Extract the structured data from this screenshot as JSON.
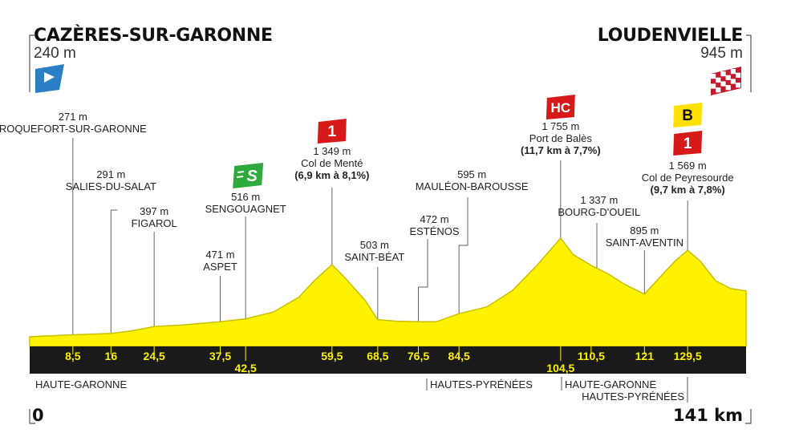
{
  "start": {
    "city": "CAZÈRES-SUR-GARONNE",
    "altitude": "240 m"
  },
  "finish": {
    "city": "LOUDENVIELLE",
    "altitude": "945 m"
  },
  "distance": {
    "start_label": "0",
    "end_label": "141 km",
    "total_km": 141
  },
  "colors": {
    "profile": "#fff200",
    "profile_stroke": "#c9bf00",
    "band": "#1a1a1a",
    "km_text": "#fff200",
    "cat1": "#d61a1a",
    "hc": "#d61a1a",
    "bonus": "#ffe000",
    "sprint": "#2eaa3c",
    "start_flag": "#2a7fc4"
  },
  "icons": {
    "start": "start-flag-icon",
    "finish": "checkered-flag-icon",
    "sprint": "sprint-icon"
  },
  "chart_data": {
    "type": "area",
    "x_unit": "km",
    "y_unit": "m",
    "xlim": [
      0,
      141
    ],
    "profile": [
      [
        0,
        240
      ],
      [
        8.5,
        271
      ],
      [
        16,
        291
      ],
      [
        20,
        330
      ],
      [
        24.5,
        397
      ],
      [
        30,
        420
      ],
      [
        37.5,
        471
      ],
      [
        42.5,
        516
      ],
      [
        48,
        620
      ],
      [
        53,
        850
      ],
      [
        56,
        1100
      ],
      [
        59.5,
        1349
      ],
      [
        62,
        1150
      ],
      [
        66,
        800
      ],
      [
        68.5,
        503
      ],
      [
        72,
        480
      ],
      [
        76.5,
        472
      ],
      [
        80,
        470
      ],
      [
        84.5,
        595
      ],
      [
        90,
        700
      ],
      [
        95,
        950
      ],
      [
        100,
        1350
      ],
      [
        104.5,
        1755
      ],
      [
        107,
        1500
      ],
      [
        110.5,
        1337
      ],
      [
        114,
        1200
      ],
      [
        117,
        1050
      ],
      [
        121,
        895
      ],
      [
        124,
        1150
      ],
      [
        127,
        1400
      ],
      [
        129.5,
        1569
      ],
      [
        132,
        1400
      ],
      [
        135,
        1100
      ],
      [
        138,
        980
      ],
      [
        141,
        945
      ]
    ],
    "km_markers": [
      "8,5",
      "16",
      "24,5",
      "37,5",
      "42,5",
      "59,5",
      "68,5",
      "76,5",
      "84,5",
      "104,5",
      "110,5",
      "121",
      "129,5"
    ],
    "waypoints": [
      {
        "name": "ROQUEFORT-SUR-GARONNE",
        "altitude": "271 m",
        "km": "8,5"
      },
      {
        "name": "SALIES-DU-SALAT",
        "altitude": "291 m",
        "km": "16"
      },
      {
        "name": "FIGAROL",
        "altitude": "397 m",
        "km": "24,5"
      },
      {
        "name": "ASPET",
        "altitude": "471 m",
        "km": "37,5"
      },
      {
        "name": "SENGOUAGNET",
        "altitude": "516 m",
        "km": "42,5",
        "badge": "S"
      },
      {
        "name": "Col de Menté",
        "altitude": "1 349 m",
        "km": "59,5",
        "badge": "1",
        "climb": "(6,9 km à 8,1%)"
      },
      {
        "name": "SAINT-BÉAT",
        "altitude": "503 m",
        "km": "68,5"
      },
      {
        "name": "ESTÉNOS",
        "altitude": "472 m",
        "km": "76,5"
      },
      {
        "name": "MAULÉON-BAROUSSE",
        "altitude": "595 m",
        "km": "84,5"
      },
      {
        "name": "Port de Balès",
        "altitude": "1 755 m",
        "km": "104,5",
        "badge": "HC",
        "climb": "(11,7 km à 7,7%)"
      },
      {
        "name": "BOURG-D'OUEIL",
        "altitude": "1 337 m",
        "km": "110,5"
      },
      {
        "name": "SAINT-AVENTIN",
        "altitude": "895 m",
        "km": "121"
      },
      {
        "name": "Col de Peyresourde",
        "altitude": "1 569 m",
        "km": "129,5",
        "badge": "1",
        "bonus_badge": "B",
        "climb": "(9,7 km à 7,8%)"
      }
    ],
    "regions": [
      "HAUTE-GARONNE",
      "HAUTES-PYRÉNÉES",
      "HAUTE-GARONNE",
      "HAUTES-PYRÉNÉES"
    ]
  }
}
